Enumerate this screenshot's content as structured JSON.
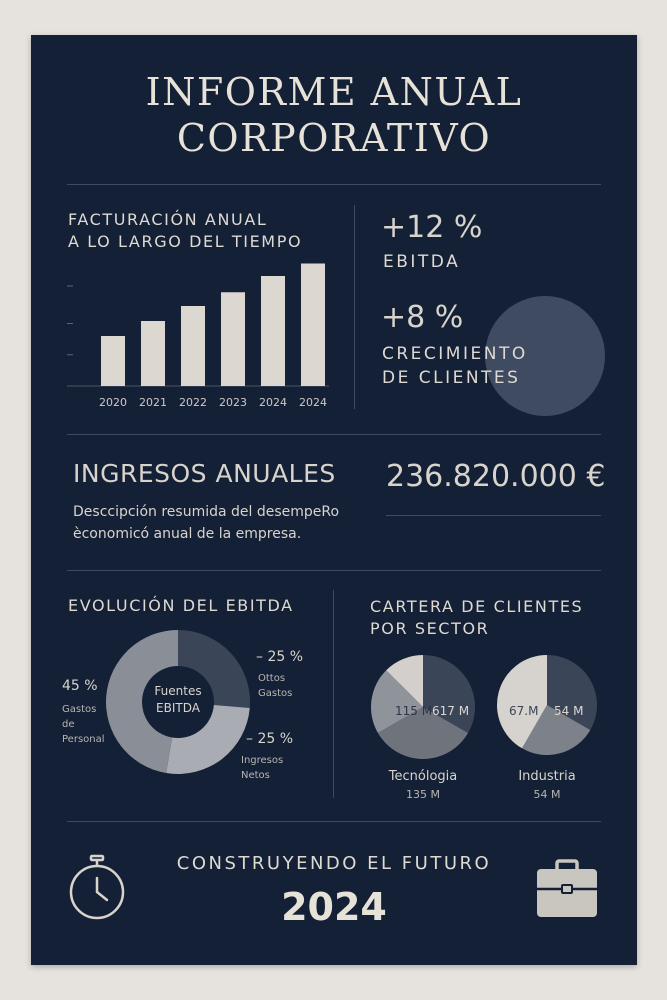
{
  "poster": {
    "title_line1": "INFORME ANUAL",
    "title_line2": "CORPORATIVO"
  },
  "revenue_chart": {
    "heading_line1": "FACTURACIÓN ANUAL",
    "heading_line2": "A LO LARGO DEL TIEMPO"
  },
  "kpis": {
    "ebitda_value": "+12 %",
    "ebitda_label": "EBITDA",
    "clients_value": "+8 %",
    "clients_label_line1": "CRECIMIENTO",
    "clients_label_line2": "DE CLIENTES"
  },
  "income": {
    "heading": "INGRESOS ANUALES",
    "amount": "236.820.000 €",
    "description_line1": "Desccipción resumida del desempeRo",
    "description_line2": "èconomicó anual de la empresa."
  },
  "ebitda_donut": {
    "heading": "EVOLUCIÓN DEL EBITDA",
    "center_line1": "Fuentes",
    "center_line2": "EBITDA",
    "label_personal_pct": "45 %",
    "label_personal_line1": "Gastos",
    "label_personal_line2": "de",
    "label_personal_line3": "Personal",
    "label_otros_pct": "– 25 %",
    "label_otros_line1": "Ottos",
    "label_otros_line2": "Gastos",
    "label_netos_pct": "– 25 %",
    "label_netos_line1": "Ingresos",
    "label_netos_line2": "Netos"
  },
  "clients_sector": {
    "heading_line1": "CARTERA DE CLIENTES",
    "heading_line2": "POR SECTOR",
    "pie1_label_a": "115 M",
    "pie1_label_b": "617 M",
    "pie1_caption_line1": "Tecnólogia",
    "pie1_caption_line2": "135 M",
    "pie2_label_a": "67.M",
    "pie2_label_b": "54 M",
    "pie2_caption_line1": "Industria",
    "pie2_caption_line2": "54 M"
  },
  "footer": {
    "tagline": "CONSTRUYENDO EL FUTURO",
    "year": "2024"
  },
  "chart_data": [
    {
      "type": "bar",
      "title": "FACTURACIÓN ANUAL A LO LARGO DEL TIEMPO",
      "categories": [
        "2020",
        "2021",
        "2022",
        "2023",
        "2024",
        "2024"
      ],
      "values": [
        40,
        52,
        64,
        75,
        88,
        98
      ],
      "ylim": [
        0,
        100
      ],
      "grid": false
    },
    {
      "type": "pie",
      "title": "EVOLUCIÓN DEL EBITDA",
      "categories": [
        "Ottos Gastos",
        "Ingresos Netos",
        "Gastos de Personal"
      ],
      "values": [
        25,
        25,
        45
      ],
      "legend": "outside-labels"
    }
  ],
  "colors": {
    "background": "#142036",
    "bars": "#dcd8d1",
    "slice_dark": "#3b4558",
    "slice_mid": "#8a8e97",
    "slice_light": "#a9adb3",
    "accent_circle": "#3e4b61"
  }
}
